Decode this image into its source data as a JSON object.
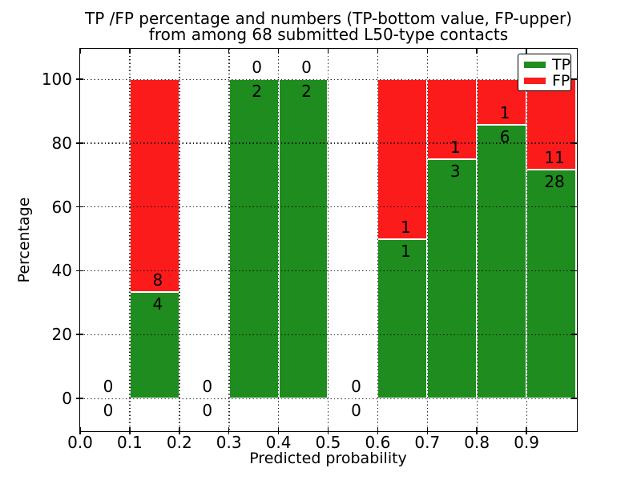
{
  "figure": {
    "title_line1": "TP /FP percentage and numbers (TP-bottom value, FP-upper)",
    "title_line2": "from among 68 submitted L50-type contacts",
    "xlabel": "Predicted probability",
    "ylabel": "Percentage"
  },
  "legend": {
    "items": [
      {
        "label": "TP",
        "color": "#1e8c1e"
      },
      {
        "label": "FP",
        "color": "#fb1b1b"
      }
    ]
  },
  "colors": {
    "tp": "#1e8c1e",
    "fp": "#fb1b1b",
    "grid": "#000000",
    "background": "#ffffff"
  },
  "chart_data": {
    "type": "bar",
    "stacked": true,
    "title": "TP /FP percentage and numbers (TP-bottom value, FP-upper) from among 68 submitted L50-type contacts",
    "xlabel": "Predicted probability",
    "ylabel": "Percentage",
    "xlim": [
      0.0,
      1.0
    ],
    "ylim": [
      -10,
      110
    ],
    "x_ticks": [
      "0.0",
      "0.1",
      "0.2",
      "0.3",
      "0.4",
      "0.5",
      "0.6",
      "0.7",
      "0.8",
      "0.9"
    ],
    "y_ticks": [
      "0",
      "20",
      "40",
      "60",
      "80",
      "100"
    ],
    "grid": true,
    "grid_style": "dotted",
    "legend_position": "upper right",
    "series": [
      {
        "name": "TP",
        "color": "#1e8c1e",
        "position": "bottom"
      },
      {
        "name": "FP",
        "color": "#fb1b1b",
        "position": "top"
      }
    ],
    "total_contacts": 68,
    "bins": [
      {
        "x_start": 0.0,
        "x_end": 0.1,
        "tp_count": 0,
        "fp_count": 0,
        "tp_pct": 0,
        "fp_pct": 0
      },
      {
        "x_start": 0.1,
        "x_end": 0.2,
        "tp_count": 4,
        "fp_count": 8,
        "tp_pct": 33.33,
        "fp_pct": 66.67
      },
      {
        "x_start": 0.2,
        "x_end": 0.3,
        "tp_count": 0,
        "fp_count": 0,
        "tp_pct": 0,
        "fp_pct": 0
      },
      {
        "x_start": 0.3,
        "x_end": 0.4,
        "tp_count": 2,
        "fp_count": 0,
        "tp_pct": 100,
        "fp_pct": 0
      },
      {
        "x_start": 0.4,
        "x_end": 0.5,
        "tp_count": 2,
        "fp_count": 0,
        "tp_pct": 100,
        "fp_pct": 0
      },
      {
        "x_start": 0.5,
        "x_end": 0.6,
        "tp_count": 0,
        "fp_count": 0,
        "tp_pct": 0,
        "fp_pct": 0
      },
      {
        "x_start": 0.6,
        "x_end": 0.7,
        "tp_count": 1,
        "fp_count": 1,
        "tp_pct": 50,
        "fp_pct": 50
      },
      {
        "x_start": 0.7,
        "x_end": 0.8,
        "tp_count": 3,
        "fp_count": 1,
        "tp_pct": 75,
        "fp_pct": 25
      },
      {
        "x_start": 0.8,
        "x_end": 0.9,
        "tp_count": 6,
        "fp_count": 1,
        "tp_pct": 85.71,
        "fp_pct": 14.29
      },
      {
        "x_start": 0.9,
        "x_end": 1.0,
        "tp_count": 28,
        "fp_count": 11,
        "tp_pct": 71.79,
        "fp_pct": 28.21
      }
    ]
  }
}
